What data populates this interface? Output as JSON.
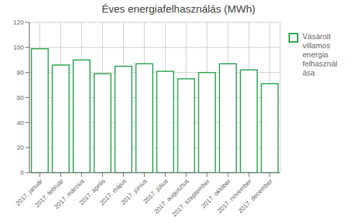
{
  "chart_data": {
    "type": "bar",
    "title": "Éves energiafelhasználás (MWh)",
    "categories": [
      "2017. január",
      "2017. február",
      "2017. március",
      "2017. április",
      "2017. május",
      "2017. június",
      "2017. július",
      "2017. augusztus",
      "2017. szeptember",
      "2017. október",
      "2017. november",
      "2017. december"
    ],
    "series": [
      {
        "name": "Vásárolt\nvillamos\nenergia\nfelhasznál\nása",
        "color": "#21a045",
        "values": [
          99,
          86,
          90,
          79,
          85,
          87,
          81,
          75,
          80,
          87,
          82,
          71
        ]
      }
    ],
    "ylim": [
      0,
      120
    ],
    "yticks": [
      0,
      20,
      40,
      60,
      80,
      100,
      120
    ],
    "grid": true,
    "legend": "right"
  }
}
